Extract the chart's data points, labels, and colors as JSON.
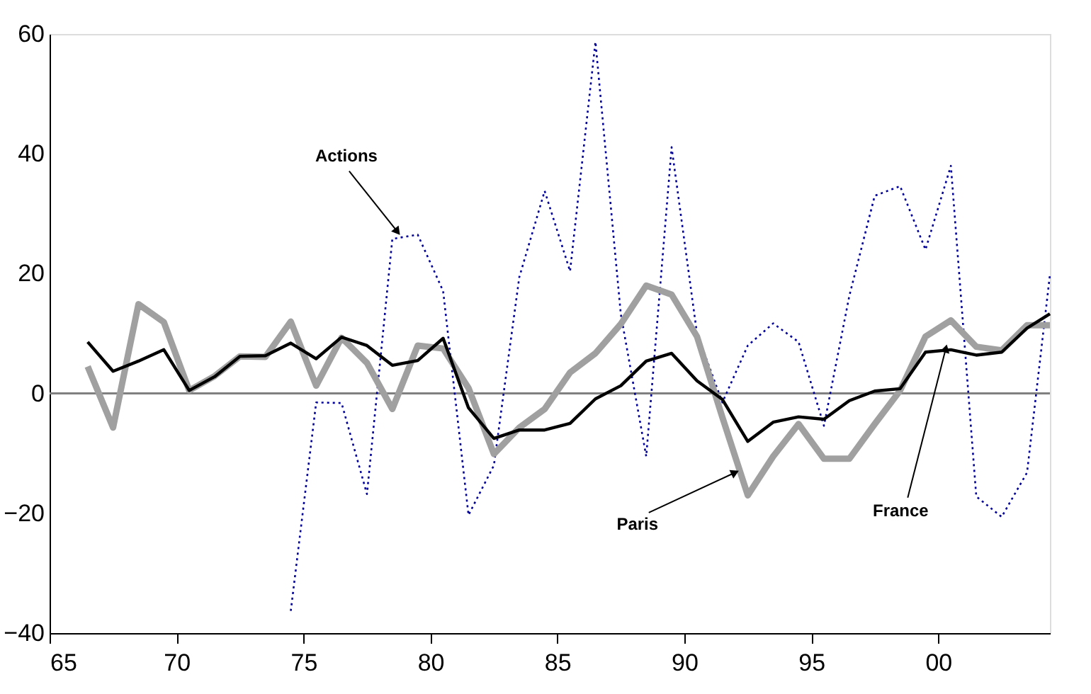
{
  "chart_data": {
    "type": "line",
    "xlim": [
      1965,
      2004.4
    ],
    "ylim": [
      -40,
      60
    ],
    "xticks": [
      {
        "value": 1965,
        "label": "65"
      },
      {
        "value": 1970,
        "label": "70"
      },
      {
        "value": 1975,
        "label": "75"
      },
      {
        "value": 1980,
        "label": "80"
      },
      {
        "value": 1985,
        "label": "85"
      },
      {
        "value": 1990,
        "label": "90"
      },
      {
        "value": 1995,
        "label": "95"
      },
      {
        "value": 2000,
        "label": "00"
      }
    ],
    "yticks": [
      -40,
      -20,
      0,
      20,
      40,
      60
    ],
    "grid": false,
    "marker": "none",
    "ref_lines": [
      {
        "axis": "y",
        "value": 0,
        "color": "#808080"
      }
    ],
    "series": [
      {
        "color": "#000000",
        "line_style": "solid",
        "x": [
          1966.5,
          1967.5,
          1968.5,
          1969.5,
          1970.5,
          1971.5,
          1972.5,
          1973.5,
          1974.5,
          1975.5,
          1976.5,
          1977.5,
          1978.5,
          1979.5,
          1980.5,
          1981.5,
          1982.5,
          1983.5,
          1984.5,
          1985.5,
          1986.5,
          1987.5,
          1988.5,
          1989.5,
          1990.5,
          1991.5,
          1992.5,
          1993.5,
          1994.5,
          1995.5,
          1996.5,
          1997.5,
          1998.5,
          1999.5,
          2000.5,
          2001.5,
          2002.5,
          2003.5,
          2004.4
        ],
        "values": [
          8.6,
          3.7,
          5.4,
          7.3,
          0.5,
          2.8,
          6.2,
          6.3,
          8.4,
          5.8,
          9.4,
          8.0,
          4.7,
          5.5,
          9.2,
          -2.4,
          -7.5,
          -6.1,
          -6.1,
          -5.0,
          -0.9,
          1.3,
          5.4,
          6.7,
          2.1,
          -1.0,
          -8.0,
          -4.8,
          -3.9,
          -4.3,
          -1.2,
          0.4,
          0.8,
          6.9,
          7.3,
          6.4,
          6.9,
          10.9,
          13.3
        ]
      },
      {
        "color": "#a0a0a0",
        "line_style": "solid",
        "x": [
          1966.5,
          1967.5,
          1968.5,
          1969.5,
          1970.5,
          1971.5,
          1972.5,
          1973.5,
          1974.5,
          1975.5,
          1976.5,
          1977.5,
          1978.5,
          1979.5,
          1980.5,
          1981.5,
          1982.5,
          1983.5,
          1984.5,
          1985.5,
          1986.5,
          1987.5,
          1988.5,
          1989.5,
          1990.5,
          1991.5,
          1992.5,
          1993.5,
          1994.5,
          1995.5,
          1996.5,
          1997.5,
          1998.5,
          1999.5,
          2000.5,
          2001.5,
          2002.5,
          2003.5,
          2004.4
        ],
        "values": [
          4.5,
          -5.7,
          14.9,
          11.9,
          0.5,
          2.9,
          6.2,
          6.1,
          12.0,
          1.3,
          9.3,
          5.1,
          -2.6,
          8.0,
          7.5,
          0.9,
          -10.1,
          -5.7,
          -2.6,
          3.5,
          6.7,
          11.6,
          18.0,
          16.5,
          9.5,
          -4.0,
          -17.0,
          -10.5,
          -5.1,
          -10.9,
          -10.9,
          -5.1,
          0.5,
          9.5,
          12.2,
          7.8,
          7.2,
          11.4,
          11.4
        ]
      },
      {
        "color": "#000099",
        "line_style": "dotted",
        "x": [
          1974.5,
          1975.5,
          1976.5,
          1977.5,
          1978.5,
          1979.5,
          1980.5,
          1981.5,
          1982.5,
          1983.5,
          1984.5,
          1985.5,
          1986.5,
          1987.5,
          1988.5,
          1989.5,
          1990.5,
          1991.5,
          1992.5,
          1993.5,
          1994.5,
          1995.5,
          1996.5,
          1997.5,
          1998.5,
          1999.5,
          2000.5,
          2001.5,
          2002.5,
          2003.5,
          2004.4
        ],
        "values": [
          -36.3,
          -1.5,
          -1.6,
          -16.8,
          25.8,
          26.5,
          17.1,
          -20.3,
          -12.0,
          19.4,
          33.8,
          20.4,
          58.7,
          13.2,
          -10.5,
          41.1,
          10.0,
          -1.5,
          8.0,
          11.7,
          8.6,
          -5.4,
          16.3,
          33.0,
          34.6,
          24.0,
          38.0,
          -17.2,
          -20.6,
          -13.2,
          19.8
        ]
      }
    ],
    "annotations": [
      {
        "text": "Actions",
        "x": 1978.7,
        "y": 27
      },
      {
        "text": "Paris",
        "x": 1992.0,
        "y": -13.2
      },
      {
        "text": "France",
        "x": 2000.3,
        "y": 7.5
      }
    ]
  }
}
